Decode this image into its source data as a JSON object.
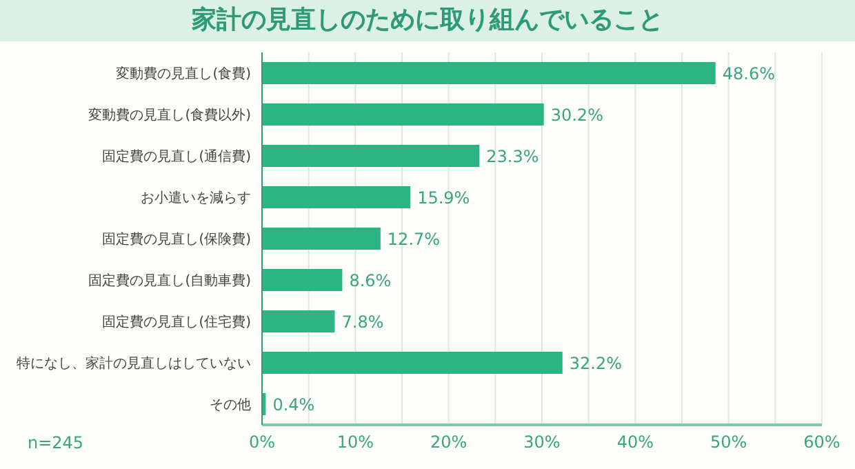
{
  "chart_data": {
    "type": "bar",
    "orientation": "horizontal",
    "title": "家計の見直しのために取り組んでいること",
    "categories": [
      "変動費の見直し(食費)",
      "変動費の見直し(食費以外)",
      "固定費の見直し(通信費)",
      "お小遣いを減らす",
      "固定費の見直し(保険費)",
      "固定費の見直し(自動車費)",
      "固定費の見直し(住宅費)",
      "特になし、家計の見直しはしていない",
      "その他"
    ],
    "values": [
      48.6,
      30.2,
      23.3,
      15.9,
      12.7,
      8.6,
      7.8,
      32.2,
      0.4
    ],
    "value_labels": [
      "48.6%",
      "30.2%",
      "23.3%",
      "15.9%",
      "12.7%",
      "8.6%",
      "7.8%",
      "32.2%",
      "0.4%"
    ],
    "color": "#2db482",
    "xlim": [
      0,
      60
    ],
    "xticks": [
      {
        "value": 0,
        "label": "0%"
      },
      {
        "value": 5,
        "label": null
      },
      {
        "value": 10,
        "label": "10%"
      },
      {
        "value": 15,
        "label": null
      },
      {
        "value": 20,
        "label": "20%"
      },
      {
        "value": 25,
        "label": null
      },
      {
        "value": 30,
        "label": "30%"
      },
      {
        "value": 35,
        "label": null
      },
      {
        "value": 40,
        "label": "40%"
      },
      {
        "value": 45,
        "label": null
      },
      {
        "value": 50,
        "label": "50%"
      },
      {
        "value": 55,
        "label": null
      },
      {
        "value": 60,
        "label": "60%"
      }
    ],
    "grid": "x",
    "annotations": [
      "n=245"
    ]
  }
}
